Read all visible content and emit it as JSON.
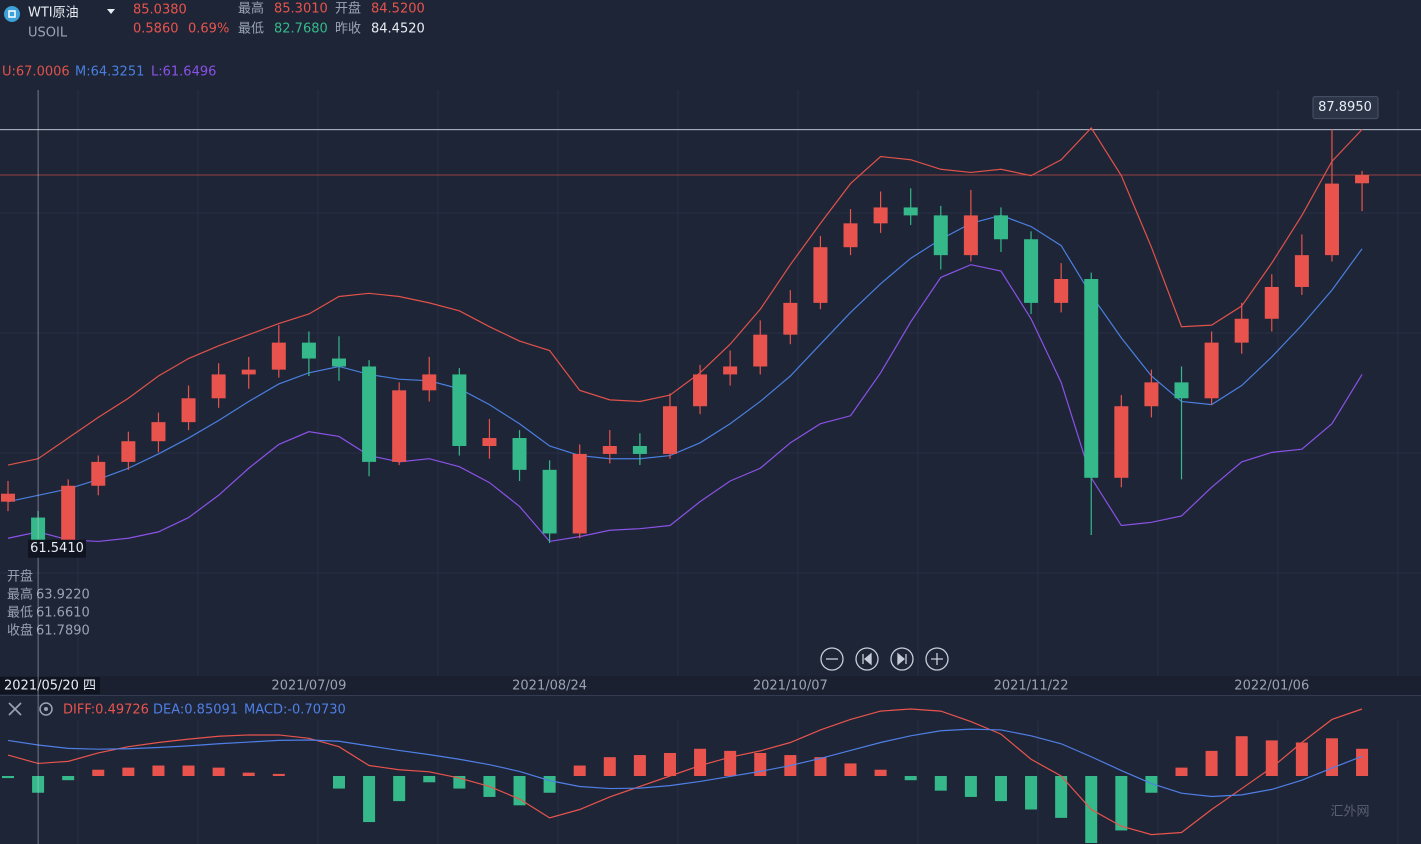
{
  "header": {
    "symbol": "WTI原油",
    "code": "USOIL",
    "price": "85.0380",
    "change": "0.5860",
    "change_pct": "0.69%",
    "stats": [
      {
        "label": "最高",
        "value": "85.3010"
      },
      {
        "label": "开盘",
        "value": "84.5200"
      },
      {
        "label": "最低",
        "value": "82.7680"
      },
      {
        "label": "昨收",
        "value": "84.4520"
      }
    ]
  },
  "indicators": {
    "boll": [
      "U:67.0006",
      "M:64.3251",
      "L:61.6496"
    ],
    "macd": [
      "DIFF:0.49726",
      "DEA:0.85091",
      "MACD:-0.70730"
    ]
  },
  "crosshair": {
    "date": "2021/05/20 四",
    "price": {
      "value": 61.541,
      "label": "61.5410"
    },
    "rows": [
      {
        "label": "开盘"
      },
      {
        "label": "最高",
        "value": "63.9220"
      },
      {
        "label": "最低",
        "value": "61.6610"
      },
      {
        "label": "收盘",
        "value": "61.7890"
      }
    ]
  },
  "watermark": "汇外网",
  "chart_data": [
    {
      "type": "candlestick",
      "up_color": "#e8544d",
      "down_color": "#35b98a",
      "ylim": [
        53.6,
        92.9
      ],
      "max_marker": {
        "value": 87.895,
        "label": "87.8950"
      },
      "categories": [
        null,
        null,
        null,
        null,
        null,
        null,
        null,
        null,
        null,
        null,
        "2021/07/09",
        null,
        null,
        null,
        null,
        null,
        null,
        null,
        "2021/08/24",
        null,
        null,
        null,
        null,
        null,
        null,
        null,
        "2021/10/07",
        null,
        null,
        null,
        null,
        null,
        null,
        null,
        "2021/11/22",
        null,
        null,
        null,
        null,
        null,
        null,
        null,
        "2022/01/06",
        null,
        null,
        null
      ],
      "candles": [
        [
          64.5,
          65.8,
          63.9,
          65.0
        ],
        [
          63.5,
          63.92,
          61.66,
          61.79
        ],
        [
          61.8,
          65.9,
          61.5,
          65.5
        ],
        [
          65.5,
          67.4,
          64.9,
          67.0
        ],
        [
          67.0,
          68.9,
          66.5,
          68.3
        ],
        [
          68.3,
          70.1,
          67.6,
          69.5
        ],
        [
          69.5,
          71.8,
          69.0,
          71.0
        ],
        [
          71.0,
          73.2,
          70.4,
          72.5
        ],
        [
          72.5,
          73.6,
          71.6,
          72.8
        ],
        [
          72.8,
          75.6,
          72.3,
          74.5
        ],
        [
          74.5,
          75.2,
          72.4,
          73.5
        ],
        [
          73.5,
          74.9,
          72.1,
          73.0
        ],
        [
          73.0,
          73.4,
          66.1,
          67.0
        ],
        [
          67.0,
          72.0,
          66.8,
          71.5
        ],
        [
          71.5,
          73.6,
          70.8,
          72.5
        ],
        [
          72.5,
          72.9,
          67.4,
          68.0
        ],
        [
          68.0,
          69.7,
          67.2,
          68.5
        ],
        [
          68.5,
          69.0,
          65.8,
          66.5
        ],
        [
          66.5,
          67.1,
          61.9,
          62.5
        ],
        [
          62.5,
          68.1,
          62.2,
          67.5
        ],
        [
          67.5,
          69.0,
          66.9,
          68.0
        ],
        [
          68.0,
          68.8,
          66.8,
          67.5
        ],
        [
          67.5,
          71.3,
          67.2,
          70.5
        ],
        [
          70.5,
          73.1,
          70.0,
          72.5
        ],
        [
          72.5,
          74.0,
          71.8,
          73.0
        ],
        [
          73.0,
          75.9,
          72.5,
          75.0
        ],
        [
          75.0,
          77.8,
          74.4,
          77.0
        ],
        [
          77.0,
          81.2,
          76.6,
          80.5
        ],
        [
          80.5,
          82.9,
          80.0,
          82.0
        ],
        [
          82.0,
          84.0,
          81.4,
          83.0
        ],
        [
          83.0,
          84.2,
          81.9,
          82.5
        ],
        [
          82.5,
          83.1,
          79.1,
          80.0
        ],
        [
          80.0,
          84.1,
          79.6,
          82.5
        ],
        [
          82.5,
          83.0,
          80.2,
          81.0
        ],
        [
          81.0,
          81.5,
          76.3,
          77.0
        ],
        [
          77.0,
          79.5,
          76.4,
          78.5
        ],
        [
          78.5,
          78.9,
          62.4,
          66.0
        ],
        [
          66.0,
          71.2,
          65.4,
          70.5
        ],
        [
          70.5,
          72.8,
          69.8,
          72.0
        ],
        [
          72.0,
          73.0,
          65.9,
          71.0
        ],
        [
          71.0,
          75.2,
          70.6,
          74.5
        ],
        [
          74.5,
          77.0,
          73.8,
          76.0
        ],
        [
          76.0,
          78.8,
          75.2,
          78.0
        ],
        [
          78.0,
          81.3,
          77.5,
          80.0
        ],
        [
          80.0,
          87.895,
          79.6,
          84.5
        ],
        [
          84.52,
          85.301,
          82.768,
          85.038
        ]
      ],
      "series": [
        {
          "color": "#e0524a",
          "values": [
            66.8,
            67.2,
            68.5,
            69.8,
            71.0,
            72.4,
            73.5,
            74.3,
            75.0,
            75.7,
            76.3,
            77.4,
            77.6,
            77.4,
            77.0,
            76.5,
            75.5,
            74.6,
            74.0,
            71.5,
            70.9,
            70.8,
            71.2,
            72.6,
            74.4,
            76.6,
            79.4,
            82.0,
            84.5,
            86.2,
            86.0,
            85.4,
            85.2,
            85.4,
            85.0,
            86.0,
            88.0,
            85.0,
            80.5,
            75.5,
            75.6,
            76.8,
            79.5,
            82.5,
            85.9,
            87.9
          ]
        },
        {
          "color": "#4a7fe0",
          "values": [
            64.5,
            64.9,
            65.3,
            65.9,
            66.6,
            67.5,
            68.5,
            69.6,
            70.8,
            71.9,
            72.6,
            73.0,
            72.5,
            72.2,
            72.1,
            71.6,
            70.6,
            69.4,
            68.0,
            67.4,
            67.2,
            67.2,
            67.4,
            68.2,
            69.4,
            70.8,
            72.4,
            74.4,
            76.4,
            78.2,
            79.8,
            81.0,
            82.0,
            82.5,
            81.8,
            80.6,
            77.5,
            74.8,
            72.4,
            70.8,
            70.6,
            71.8,
            73.6,
            75.6,
            77.8,
            80.4
          ]
        },
        {
          "color": "#8a52e6",
          "values": [
            62.2,
            62.6,
            62.1,
            62.0,
            62.2,
            62.6,
            63.5,
            64.9,
            66.6,
            68.1,
            68.9,
            68.6,
            67.4,
            67.0,
            67.2,
            66.7,
            65.7,
            64.2,
            62.0,
            62.3,
            62.7,
            62.8,
            63.0,
            64.5,
            65.8,
            66.6,
            68.2,
            69.4,
            69.9,
            72.6,
            75.8,
            78.6,
            79.4,
            79.0,
            76.0,
            72.0,
            66.0,
            63.0,
            63.2,
            63.6,
            65.4,
            67.0,
            67.6,
            67.8,
            69.4,
            72.5
          ]
        }
      ]
    },
    {
      "type": "macd",
      "ylim": [
        -1.6,
        1.6
      ],
      "up_color": "#e8544d",
      "down_color": "#35b98a",
      "histogram": [
        -0.05,
        -0.4,
        -0.1,
        0.15,
        0.2,
        0.25,
        0.25,
        0.2,
        0.08,
        0.05,
        0.0,
        -0.3,
        -1.1,
        -0.6,
        -0.15,
        -0.3,
        -0.5,
        -0.7,
        -0.4,
        0.25,
        0.45,
        0.5,
        0.55,
        0.65,
        0.6,
        0.55,
        0.5,
        0.45,
        0.3,
        0.15,
        -0.1,
        -0.35,
        -0.5,
        -0.6,
        -0.8,
        -1.0,
        -1.6,
        -1.3,
        -0.4,
        0.2,
        0.6,
        0.95,
        0.85,
        0.8,
        0.9,
        0.65
      ],
      "series": [
        {
          "color": "#e8544d",
          "values": [
            0.5,
            0.3,
            0.35,
            0.55,
            0.7,
            0.8,
            0.88,
            0.95,
            0.98,
            0.98,
            0.9,
            0.7,
            0.25,
            0.15,
            0.1,
            -0.05,
            -0.25,
            -0.55,
            -1.0,
            -0.8,
            -0.5,
            -0.25,
            0.0,
            0.25,
            0.45,
            0.6,
            0.8,
            1.1,
            1.35,
            1.55,
            1.6,
            1.55,
            1.3,
            1.0,
            0.4,
            0.0,
            -0.8,
            -1.2,
            -1.4,
            -1.35,
            -0.8,
            -0.3,
            0.2,
            0.8,
            1.35,
            1.6
          ]
        },
        {
          "color": "#4f7fe6",
          "values": [
            0.85,
            0.74,
            0.66,
            0.64,
            0.65,
            0.68,
            0.72,
            0.77,
            0.81,
            0.85,
            0.86,
            0.83,
            0.72,
            0.61,
            0.51,
            0.4,
            0.27,
            0.11,
            -0.11,
            -0.25,
            -0.3,
            -0.29,
            -0.23,
            -0.13,
            -0.01,
            0.11,
            0.25,
            0.42,
            0.61,
            0.8,
            0.96,
            1.08,
            1.12,
            1.1,
            0.96,
            0.77,
            0.46,
            0.13,
            -0.18,
            -0.41,
            -0.49,
            -0.45,
            -0.32,
            -0.1,
            0.19,
            0.47
          ]
        }
      ]
    }
  ]
}
